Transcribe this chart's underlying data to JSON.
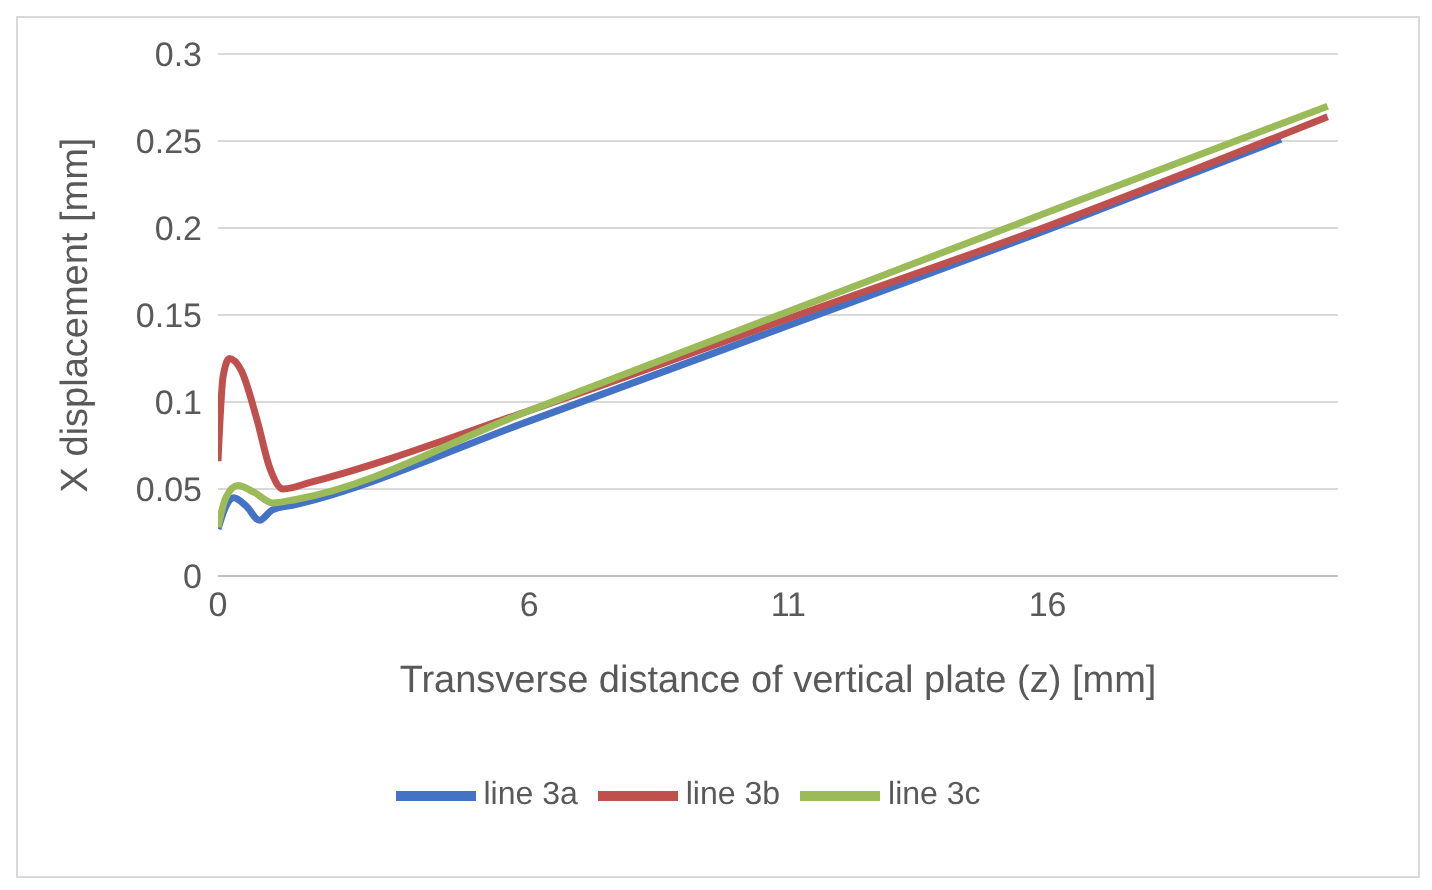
{
  "chart_data": {
    "type": "line",
    "xlabel": "Transverse distance of vertical plate (z) [mm]",
    "ylabel": "X displacement [mm]",
    "xlim": [
      0,
      21.6
    ],
    "xticks": [
      0,
      6,
      11,
      16
    ],
    "ylim": [
      0,
      0.3
    ],
    "yticks": [
      0,
      0.05,
      0.1,
      0.15,
      0.2,
      0.25,
      0.3
    ],
    "grid": "y",
    "legend": "bottom",
    "marker": "none",
    "line_style": "solid",
    "series": [
      {
        "name": "line 3a",
        "color": "#4472c4",
        "x": [
          0,
          0.15,
          0.3,
          0.55,
          0.8,
          1.05,
          1.5,
          6,
          11,
          16,
          20.5
        ],
        "values": [
          0.027,
          0.04,
          0.045,
          0.04,
          0.032,
          0.038,
          0.041,
          0.089,
          0.144,
          0.199,
          0.251
        ]
      },
      {
        "name": "line 3b",
        "color": "#c0504d",
        "x": [
          0,
          0.1,
          0.22,
          0.45,
          0.75,
          1.0,
          1.26,
          1.8,
          6,
          11,
          16,
          21.4
        ],
        "values": [
          0.066,
          0.115,
          0.125,
          0.118,
          0.09,
          0.062,
          0.05,
          0.054,
          0.095,
          0.148,
          0.201,
          0.264
        ]
      },
      {
        "name": "line 3c",
        "color": "#9bbb59",
        "x": [
          0,
          0.15,
          0.38,
          0.7,
          1.05,
          1.5,
          6,
          11,
          16,
          21.4
        ],
        "values": [
          0.028,
          0.045,
          0.052,
          0.048,
          0.042,
          0.044,
          0.095,
          0.152,
          0.209,
          0.27
        ]
      }
    ]
  }
}
